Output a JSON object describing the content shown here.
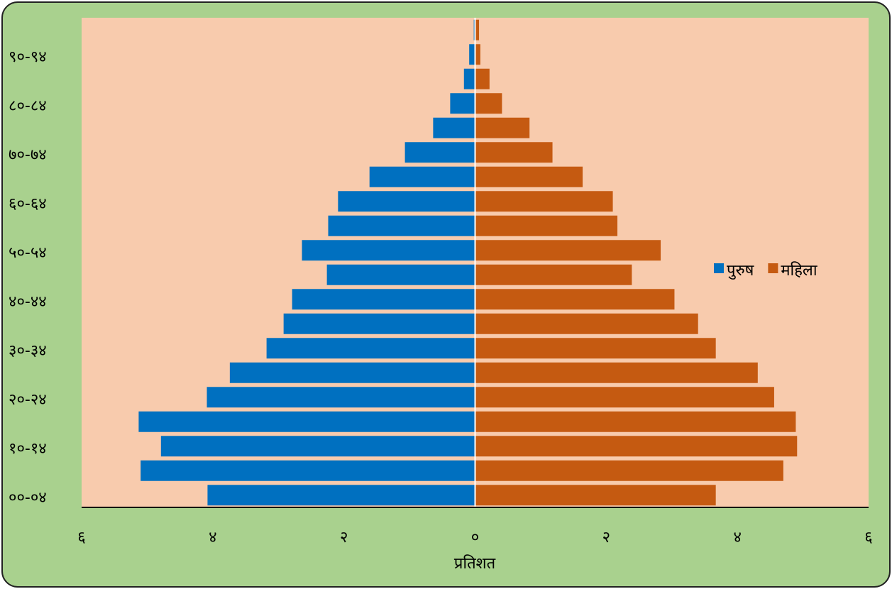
{
  "chart_data": {
    "type": "pyramid",
    "x_label": "प्रतिशत",
    "categories": [
      "००-०४",
      null,
      "१०-१४",
      null,
      "२०-२४",
      null,
      "३०-३४",
      null,
      "४०-४४",
      null,
      "५०-५४",
      null,
      "६०-६४",
      null,
      "७०-७४",
      null,
      "८०-८४",
      null,
      "९०-९४",
      null
    ],
    "series": [
      {
        "name": "पुरुष",
        "color": "#0070c0",
        "values": [
          -4.08,
          -5.1,
          -4.79,
          -5.13,
          -4.09,
          -3.74,
          -3.18,
          -2.92,
          -2.79,
          -2.26,
          -2.64,
          -2.24,
          -2.09,
          -1.61,
          -1.07,
          -0.64,
          -0.38,
          -0.17,
          -0.09,
          -0.02
        ]
      },
      {
        "name": "महिला",
        "color": "#c55a11",
        "values": [
          3.67,
          4.7,
          4.91,
          4.89,
          4.56,
          4.31,
          3.67,
          3.4,
          3.04,
          2.39,
          2.83,
          2.17,
          2.1,
          1.64,
          1.18,
          0.83,
          0.41,
          0.22,
          0.08,
          0.06
        ]
      }
    ],
    "xlim": [
      -6,
      6
    ],
    "xticks": [
      {
        "value": -6,
        "label": "६"
      },
      {
        "value": -4,
        "label": "४"
      },
      {
        "value": -2,
        "label": "२"
      },
      {
        "value": 0,
        "label": "०"
      },
      {
        "value": 2,
        "label": "२"
      },
      {
        "value": 4,
        "label": "४"
      },
      {
        "value": 6,
        "label": "६"
      }
    ],
    "legend": "right"
  }
}
